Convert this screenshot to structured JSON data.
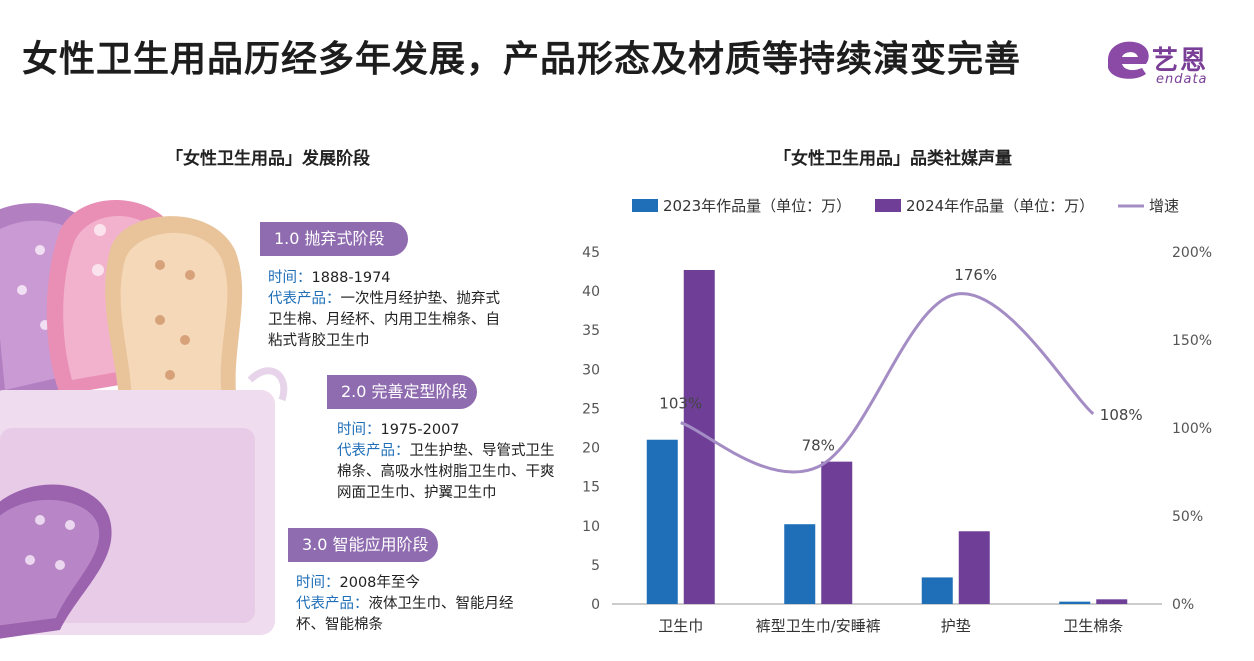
{
  "page": {
    "title": "女性卫生用品历经多年发展，产品形态及材质等持续演变完善",
    "logo_cn": "艺恩",
    "logo_en": "endata"
  },
  "left": {
    "title": "「女性卫生用品」发展阶段",
    "stages": [
      {
        "badge": "1.0 抛弃式阶段",
        "time_label": "时间：",
        "time_value": "1888-1974",
        "products_label": "代表产品：",
        "products_value": "一次性月经护垫、抛弃式卫生棉、月经杯、内用卫生棉条、自粘式背胶卫生巾"
      },
      {
        "badge": "2.0 完善定型阶段",
        "time_label": "时间：",
        "time_value": "1975-2007",
        "products_label": "代表产品：",
        "products_value": "卫生护垫、导管式卫生棉条、高吸水性树脂卫生巾、干爽网面卫生巾、护翼卫生巾"
      },
      {
        "badge": "3.0 智能应用阶段",
        "time_label": "时间：",
        "time_value": "2008年至今",
        "products_label": "代表产品：",
        "products_value": "液体卫生巾、智能月经杯、智能棉条"
      }
    ]
  },
  "chart_data": {
    "type": "bar",
    "title": "「女性卫生用品」品类社媒声量",
    "categories": [
      "卫生巾",
      "裤型卫生巾/安睡裤",
      "护垫",
      "卫生棉条"
    ],
    "series": [
      {
        "name": "2023年作品量（单位：万）",
        "type": "bar",
        "axis": "left",
        "color": "#1f6fb8",
        "values": [
          21,
          10.2,
          3.4,
          0.3
        ]
      },
      {
        "name": "2024年作品量（单位：万）",
        "type": "bar",
        "axis": "left",
        "color": "#6f3f98",
        "values": [
          42.7,
          18.2,
          9.3,
          0.6
        ]
      },
      {
        "name": "增速",
        "type": "line",
        "axis": "right",
        "color": "#a48cc4",
        "values": [
          103,
          78,
          176,
          108
        ],
        "labels": [
          "103%",
          "78%",
          "176%",
          "108%"
        ]
      }
    ],
    "ylim": [
      0,
      45
    ],
    "yticks": [
      0,
      5,
      10,
      15,
      20,
      25,
      30,
      35,
      40,
      45
    ],
    "y2lim": [
      0,
      200
    ],
    "y2ticks": [
      "0%",
      "50%",
      "100%",
      "150%",
      "200%"
    ],
    "legend_position": "top",
    "grid": false
  }
}
